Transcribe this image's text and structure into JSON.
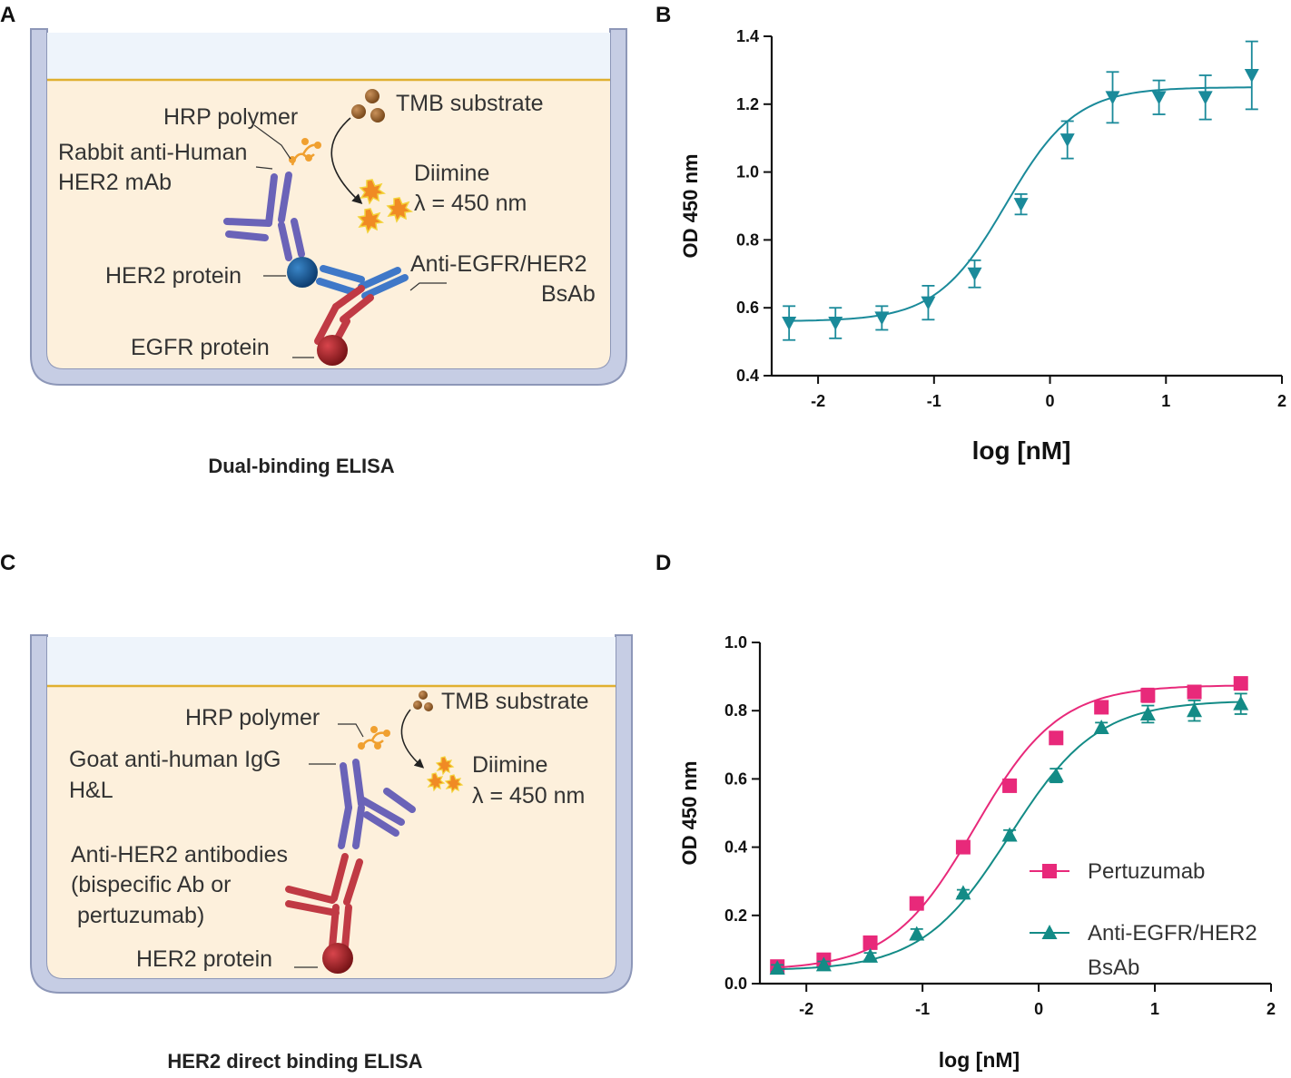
{
  "panels": {
    "A": {
      "letter": "A",
      "caption": "Dual-binding ELISA",
      "labels": {
        "hrp": "HRP polymer",
        "tmb": "TMB substrate",
        "rabbit_line1": "Rabbit anti-Human",
        "rabbit_line2": "HER2 mAb",
        "diimine": "Diimine",
        "lambda": "λ = 450 nm",
        "her2": "HER2 protein",
        "bsab_line1": "Anti-EGFR/HER2",
        "bsab_line2": "BsAb",
        "egfr": "EGFR protein"
      }
    },
    "B": {
      "letter": "B"
    },
    "C": {
      "letter": "C",
      "caption": "HER2 direct binding ELISA",
      "labels": {
        "hrp": "HRP polymer",
        "tmb": "TMB substrate",
        "goat_line1": "Goat anti-human IgG",
        "goat_line2": "H&L",
        "diimine": "Diimine",
        "lambda": "λ = 450 nm",
        "anti_line1": "Anti-HER2 antibodies",
        "anti_line2": "(bispecific Ab or",
        "anti_line3": " pertuzumab)",
        "her2": "HER2 protein"
      }
    },
    "D": {
      "letter": "D"
    }
  },
  "colors": {
    "teal": "#1a8a9a",
    "pink": "#e8297a",
    "green_teal": "#138b86",
    "well_border": "#c6cde4",
    "well_fill": "#fdf0dc",
    "liquid_line": "#e0b030",
    "purple": "#6a63b8",
    "blue_ab": "#3f78c8",
    "red_ab": "#c03a44"
  },
  "chart_data": [
    {
      "panel": "B",
      "type": "scatter",
      "title": "",
      "xlabel": "log [nM]",
      "ylabel": "OD 450 nm",
      "xlim": [
        -2.4,
        2
      ],
      "ylim": [
        0.4,
        1.4
      ],
      "xticks": [
        -2,
        -1,
        0,
        1,
        2
      ],
      "yticks": [
        0.4,
        0.6,
        0.8,
        1.0,
        1.2,
        1.4
      ],
      "xtick_labels": [
        "-2",
        "-1",
        "0",
        "1",
        "2"
      ],
      "ytick_labels": [
        "0.4",
        "0.6",
        "0.8",
        "1.0",
        "1.2",
        "1.4"
      ],
      "marker": "triangle-down",
      "fit": {
        "bottom": 0.56,
        "top": 1.25,
        "logEC50": -0.38,
        "hill": 1.45
      },
      "series": [
        {
          "name": "Anti-EGFR/HER2 BsAb",
          "x": [
            -2.25,
            -1.85,
            -1.45,
            -1.05,
            -0.65,
            -0.25,
            0.15,
            0.54,
            0.94,
            1.34,
            1.74
          ],
          "y": [
            0.555,
            0.555,
            0.57,
            0.615,
            0.7,
            0.905,
            1.095,
            1.22,
            1.22,
            1.22,
            1.285
          ],
          "err": [
            0.05,
            0.045,
            0.035,
            0.05,
            0.04,
            0.03,
            0.055,
            0.075,
            0.05,
            0.065,
            0.1
          ]
        }
      ]
    },
    {
      "panel": "D",
      "type": "scatter",
      "title": "",
      "xlabel": "log [nM]",
      "ylabel": "OD 450 nm",
      "xlim": [
        -2.4,
        2
      ],
      "ylim": [
        0,
        1.0
      ],
      "xticks": [
        -2,
        -1,
        0,
        1,
        2
      ],
      "yticks": [
        0,
        0.2,
        0.4,
        0.6,
        0.8,
        1.0
      ],
      "xtick_labels": [
        "-2",
        "-1",
        "0",
        "1",
        "2"
      ],
      "ytick_labels": [
        "0.0",
        "0.2",
        "0.4",
        "0.6",
        "0.8",
        "1.0"
      ],
      "legend": "center-right",
      "series": [
        {
          "name": "Pertuzumab",
          "legend_lines": [
            "Pertuzumab"
          ],
          "marker": "square",
          "fit": {
            "bottom": 0.04,
            "top": 0.875,
            "logEC50": -0.55,
            "hill": 1.2
          },
          "x": [
            -2.25,
            -1.85,
            -1.45,
            -1.05,
            -0.65,
            -0.25,
            0.15,
            0.54,
            0.94,
            1.34,
            1.74
          ],
          "y": [
            0.05,
            0.07,
            0.12,
            0.235,
            0.4,
            0.58,
            0.72,
            0.81,
            0.845,
            0.855,
            0.88
          ],
          "err": [
            0.01,
            0.01,
            0.01,
            0.01,
            0.01,
            0.01,
            0.01,
            0.015,
            0.02,
            0.015,
            0.015
          ]
        },
        {
          "name": "Anti-EGFR/HER2 BsAb",
          "legend_lines": [
            "Anti-EGFR/HER2",
            "BsAb"
          ],
          "marker": "triangle-up",
          "fit": {
            "bottom": 0.038,
            "top": 0.83,
            "logEC50": -0.25,
            "hill": 1.15
          },
          "x": [
            -2.25,
            -1.85,
            -1.45,
            -1.05,
            -0.65,
            -0.25,
            0.15,
            0.54,
            0.94,
            1.34,
            1.74
          ],
          "y": [
            0.045,
            0.055,
            0.08,
            0.145,
            0.265,
            0.435,
            0.61,
            0.75,
            0.79,
            0.8,
            0.82
          ],
          "err": [
            0.01,
            0.01,
            0.01,
            0.015,
            0.01,
            0.015,
            0.02,
            0.015,
            0.025,
            0.03,
            0.03
          ]
        }
      ]
    }
  ]
}
